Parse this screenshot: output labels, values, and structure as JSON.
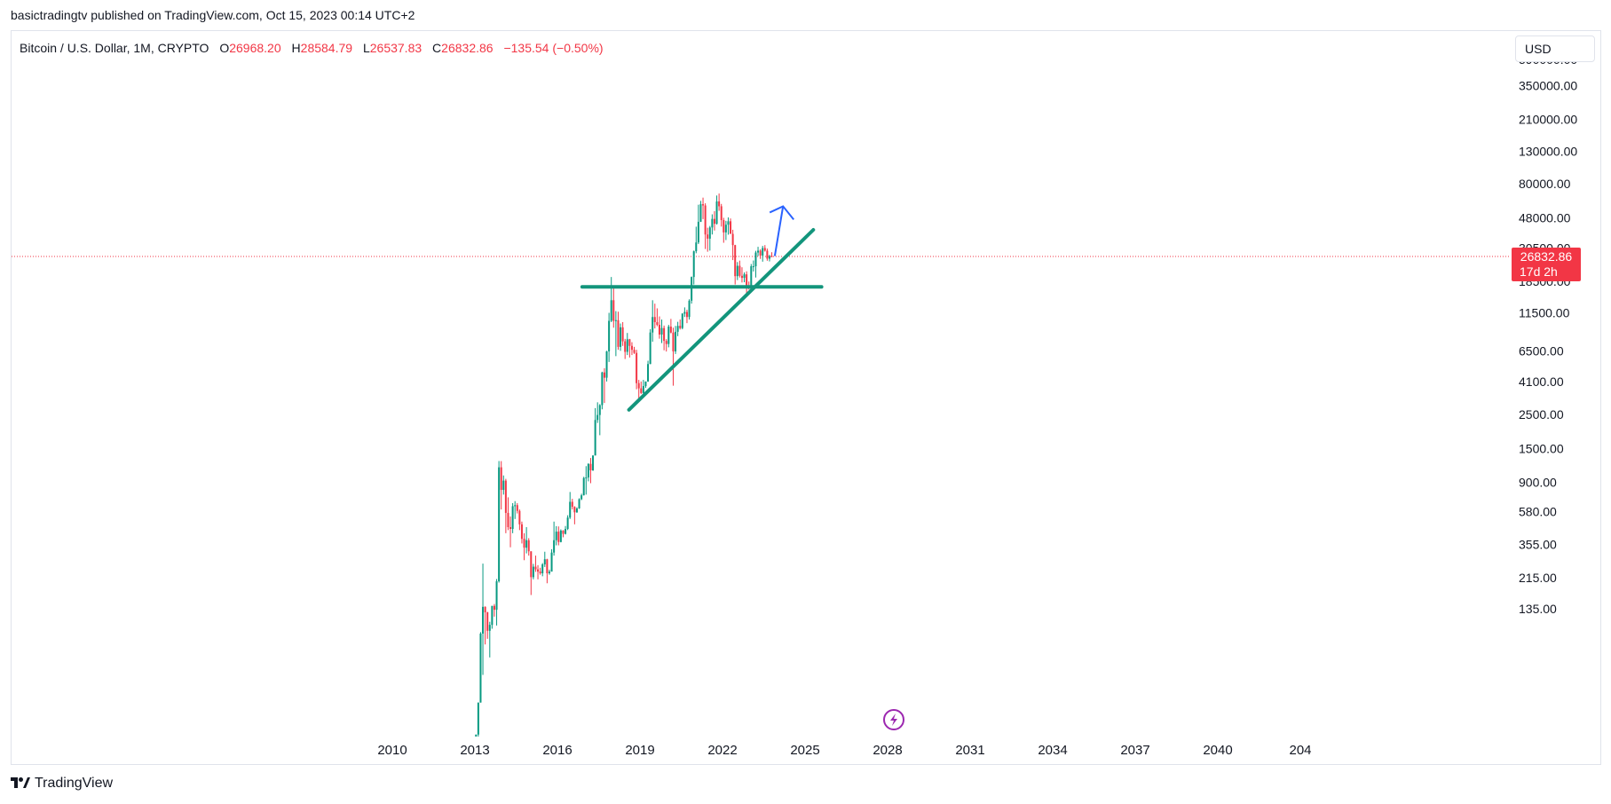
{
  "publish_line": "basictradingtv published on TradingView.com, Oct 15, 2023 00:14 UTC+2",
  "unit_button": "USD",
  "footer": {
    "brand": "TradingView"
  },
  "colors": {
    "up": "#089981",
    "down": "#f23645",
    "trendline": "#13957c",
    "arrow": "#2962ff",
    "badge": "#f23645",
    "grid_border": "#e0e3eb"
  },
  "chart_data": {
    "type": "candlestick",
    "symbol": "Bitcoin / U.S. Dollar, 1M, CRYPTO",
    "ohlc": {
      "open_label": "O",
      "open": "26968.20",
      "high_label": "H",
      "high": "28584.79",
      "low_label": "L",
      "low": "26537.83",
      "close_label": "C",
      "close": "26832.86",
      "change": "−135.54 (−0.50%)"
    },
    "y_scale": "log",
    "y_ticks": [
      {
        "label": "350000.00",
        "value": 350000
      },
      {
        "label": "210000.00",
        "value": 210000
      },
      {
        "label": "130000.00",
        "value": 130000
      },
      {
        "label": "80000.00",
        "value": 80000
      },
      {
        "label": "48000.00",
        "value": 48000
      },
      {
        "label": "18500.00",
        "value": 18500
      },
      {
        "label": "11500.00",
        "value": 11500
      },
      {
        "label": "6500.00",
        "value": 6500
      },
      {
        "label": "4100.00",
        "value": 4100
      },
      {
        "label": "2500.00",
        "value": 2500
      },
      {
        "label": "1500.00",
        "value": 1500
      },
      {
        "label": "900.00",
        "value": 900
      },
      {
        "label": "580.00",
        "value": 580
      },
      {
        "label": "355.00",
        "value": 355
      },
      {
        "label": "215.00",
        "value": 215
      },
      {
        "label": "135.00",
        "value": 135
      }
    ],
    "x_ticks": [
      "2010",
      "2013",
      "2016",
      "2019",
      "2022",
      "2025",
      "2028",
      "2031",
      "2034",
      "2037",
      "2040",
      "204"
    ],
    "last_price": {
      "value": 26832.86,
      "label": "26832.86",
      "countdown": "17d 2h"
    },
    "candles": [
      [
        "2013-01",
        13.3,
        20.4,
        12.9,
        20.4
      ],
      [
        "2013-02",
        20.4,
        33.0,
        19.5,
        33.0
      ],
      [
        "2013-03",
        33.0,
        95.0,
        33.0,
        93.0
      ],
      [
        "2013-04",
        93.0,
        266.0,
        50.0,
        139.0
      ],
      [
        "2013-05",
        139.0,
        140.0,
        79.0,
        128.0
      ],
      [
        "2013-06",
        128.0,
        129.0,
        86.0,
        97.0
      ],
      [
        "2013-07",
        97.0,
        111.0,
        65.0,
        106.0
      ],
      [
        "2013-08",
        106.0,
        141.0,
        100.0,
        141.0
      ],
      [
        "2013-09",
        141.0,
        145.0,
        120.0,
        133.0
      ],
      [
        "2013-10",
        133.0,
        211.0,
        105.0,
        204.0
      ],
      [
        "2013-11",
        204.0,
        1242.0,
        200.0,
        1130.0
      ],
      [
        "2013-12",
        1130.0,
        1240.0,
        600.0,
        805.0
      ],
      [
        "2014-01",
        805.0,
        1000.0,
        750.0,
        925.0
      ],
      [
        "2014-02",
        925.0,
        950.0,
        420.0,
        570.0
      ],
      [
        "2014-03",
        570.0,
        720.0,
        440.0,
        460.0
      ],
      [
        "2014-04",
        460.0,
        540.0,
        340.0,
        448.0
      ],
      [
        "2014-05",
        448.0,
        660.0,
        420.0,
        630.0
      ],
      [
        "2014-06",
        630.0,
        680.0,
        520.0,
        640.0
      ],
      [
        "2014-07",
        640.0,
        660.0,
        565.0,
        587.0
      ],
      [
        "2014-08",
        587.0,
        600.0,
        440.0,
        480.0
      ],
      [
        "2014-09",
        480.0,
        500.0,
        360.0,
        386.0
      ],
      [
        "2014-10",
        386.0,
        420.0,
        280.0,
        338.0
      ],
      [
        "2014-11",
        338.0,
        460.0,
        310.0,
        378.0
      ],
      [
        "2014-12",
        378.0,
        390.0,
        300.0,
        320.0
      ],
      [
        "2015-01",
        320.0,
        320.0,
        166.0,
        217.0
      ],
      [
        "2015-02",
        217.0,
        265.0,
        210.0,
        254.0
      ],
      [
        "2015-03",
        254.0,
        300.0,
        235.0,
        244.0
      ],
      [
        "2015-04",
        244.0,
        260.0,
        210.0,
        236.0
      ],
      [
        "2015-05",
        236.0,
        250.0,
        225.0,
        230.0
      ],
      [
        "2015-06",
        230.0,
        268.0,
        220.0,
        263.0
      ],
      [
        "2015-07",
        263.0,
        318.0,
        253.0,
        284.0
      ],
      [
        "2015-08",
        284.0,
        286.0,
        198.0,
        230.0
      ],
      [
        "2015-09",
        230.0,
        243.0,
        225.0,
        236.0
      ],
      [
        "2015-10",
        236.0,
        330.0,
        236.0,
        314.0
      ],
      [
        "2015-11",
        314.0,
        500.0,
        300.0,
        378.0
      ],
      [
        "2015-12",
        378.0,
        467.0,
        350.0,
        430.0
      ],
      [
        "2016-01",
        430.0,
        465.0,
        350.0,
        368.0
      ],
      [
        "2016-02",
        368.0,
        445.0,
        366.0,
        437.0
      ],
      [
        "2016-03",
        437.0,
        440.0,
        395.0,
        416.0
      ],
      [
        "2016-04",
        416.0,
        468.0,
        412.0,
        448.0
      ],
      [
        "2016-05",
        448.0,
        550.0,
        440.0,
        531.0
      ],
      [
        "2016-06",
        531.0,
        780.0,
        520.0,
        673.0
      ],
      [
        "2016-07",
        673.0,
        704.0,
        600.0,
        624.0
      ],
      [
        "2016-08",
        624.0,
        630.0,
        480.0,
        575.0
      ],
      [
        "2016-09",
        575.0,
        620.0,
        570.0,
        609.0
      ],
      [
        "2016-10",
        609.0,
        710.0,
        605.0,
        700.0
      ],
      [
        "2016-11",
        700.0,
        760.0,
        690.0,
        742.0
      ],
      [
        "2016-12",
        742.0,
        980.0,
        740.0,
        963.0
      ],
      [
        "2017-01",
        963.0,
        1150.0,
        750.0,
        970.0
      ],
      [
        "2017-02",
        970.0,
        1200.0,
        915.0,
        1190.0
      ],
      [
        "2017-03",
        1190.0,
        1300.0,
        890.0,
        1080.0
      ],
      [
        "2017-04",
        1080.0,
        1350.0,
        1070.0,
        1350.0
      ],
      [
        "2017-05",
        1350.0,
        2750.0,
        1350.0,
        2300.0
      ],
      [
        "2017-06",
        2300.0,
        3000.0,
        2200.0,
        2480.0
      ],
      [
        "2017-07",
        2480.0,
        2920.0,
        1830.0,
        2875.0
      ],
      [
        "2017-08",
        2875.0,
        4750.0,
        2700.0,
        4700.0
      ],
      [
        "2017-09",
        4700.0,
        5000.0,
        2970.0,
        4340.0
      ],
      [
        "2017-10",
        4340.0,
        6500.0,
        4100.0,
        6450.0
      ],
      [
        "2017-11",
        6450.0,
        11500.0,
        5500.0,
        10200.0
      ],
      [
        "2017-12",
        10200.0,
        19700.0,
        10000.0,
        13900.0
      ],
      [
        "2018-01",
        13900.0,
        17200.0,
        9200.0,
        10200.0
      ],
      [
        "2018-02",
        10200.0,
        11800.0,
        6000.0,
        10300.0
      ],
      [
        "2018-03",
        10300.0,
        11700.0,
        6600.0,
        6900.0
      ],
      [
        "2018-04",
        6900.0,
        9800.0,
        6500.0,
        9250.0
      ],
      [
        "2018-05",
        9250.0,
        10000.0,
        7000.0,
        7500.0
      ],
      [
        "2018-06",
        7500.0,
        7780.0,
        5750.0,
        6400.0
      ],
      [
        "2018-07",
        6400.0,
        8500.0,
        6100.0,
        7730.0
      ],
      [
        "2018-08",
        7730.0,
        7780.0,
        5880.0,
        7000.0
      ],
      [
        "2018-09",
        7000.0,
        7400.0,
        6100.0,
        6600.0
      ],
      [
        "2018-10",
        6600.0,
        6900.0,
        6200.0,
        6300.0
      ],
      [
        "2018-11",
        6300.0,
        6600.0,
        3650.0,
        4000.0
      ],
      [
        "2018-12",
        4000.0,
        4200.0,
        3150.0,
        3700.0
      ],
      [
        "2019-01",
        3700.0,
        4100.0,
        3400.0,
        3450.0
      ],
      [
        "2019-02",
        3450.0,
        4200.0,
        3380.0,
        3830.0
      ],
      [
        "2019-03",
        3830.0,
        4100.0,
        3730.0,
        4100.0
      ],
      [
        "2019-04",
        4100.0,
        5600.0,
        4080.0,
        5330.0
      ],
      [
        "2019-05",
        5330.0,
        9000.0,
        5320.0,
        8560.0
      ],
      [
        "2019-06",
        8560.0,
        13900.0,
        7450.0,
        10800.0
      ],
      [
        "2019-07",
        10800.0,
        13200.0,
        9100.0,
        10000.0
      ],
      [
        "2019-08",
        10000.0,
        12300.0,
        9400.0,
        9600.0
      ],
      [
        "2019-09",
        9600.0,
        10900.0,
        7800.0,
        8300.0
      ],
      [
        "2019-10",
        8300.0,
        10400.0,
        7300.0,
        9150.0
      ],
      [
        "2019-11",
        9150.0,
        9500.0,
        6550.0,
        7550.0
      ],
      [
        "2019-12",
        7550.0,
        7750.0,
        6430.0,
        7200.0
      ],
      [
        "2020-01",
        7200.0,
        9600.0,
        6850.0,
        9350.0
      ],
      [
        "2020-02",
        9350.0,
        10500.0,
        8450.0,
        8550.0
      ],
      [
        "2020-03",
        8550.0,
        9200.0,
        3850.0,
        6450.0
      ],
      [
        "2020-04",
        6450.0,
        9450.0,
        6200.0,
        8650.0
      ],
      [
        "2020-05",
        8650.0,
        10050.0,
        8100.0,
        9450.0
      ],
      [
        "2020-06",
        9450.0,
        10400.0,
        8950.0,
        9150.0
      ],
      [
        "2020-07",
        9150.0,
        11450.0,
        8980.0,
        11350.0
      ],
      [
        "2020-08",
        11350.0,
        12480.0,
        10800.0,
        11650.0
      ],
      [
        "2020-09",
        11650.0,
        12050.0,
        9850.0,
        10800.0
      ],
      [
        "2020-10",
        10800.0,
        14100.0,
        10400.0,
        13800.0
      ],
      [
        "2020-11",
        13800.0,
        19850.0,
        13200.0,
        19700.0
      ],
      [
        "2020-12",
        19700.0,
        29300.0,
        17600.0,
        29000.0
      ],
      [
        "2021-01",
        29000.0,
        41950.0,
        28150.0,
        33100.0
      ],
      [
        "2021-02",
        33100.0,
        58350.0,
        32300.0,
        45150.0
      ],
      [
        "2021-03",
        45150.0,
        61800.0,
        45000.0,
        58800.0
      ],
      [
        "2021-04",
        58800.0,
        64900.0,
        47000.0,
        57700.0
      ],
      [
        "2021-05",
        57700.0,
        59600.0,
        30000.0,
        37300.0
      ],
      [
        "2021-06",
        37300.0,
        41300.0,
        28800.0,
        35050.0
      ],
      [
        "2021-07",
        35050.0,
        42400.0,
        29300.0,
        41450.0
      ],
      [
        "2021-08",
        41450.0,
        50500.0,
        37300.0,
        47150.0
      ],
      [
        "2021-09",
        47150.0,
        52950.0,
        39600.0,
        43800.0
      ],
      [
        "2021-10",
        43800.0,
        67000.0,
        43300.0,
        61300.0
      ],
      [
        "2021-11",
        61300.0,
        69000.0,
        53250.0,
        57000.0
      ],
      [
        "2021-12",
        57000.0,
        59050.0,
        42000.0,
        46300.0
      ],
      [
        "2022-01",
        46300.0,
        47950.0,
        32950.0,
        38500.0
      ],
      [
        "2022-02",
        38500.0,
        45800.0,
        34300.0,
        43200.0
      ],
      [
        "2022-03",
        43200.0,
        48200.0,
        37200.0,
        45500.0
      ],
      [
        "2022-04",
        45500.0,
        47450.0,
        37700.0,
        37650.0
      ],
      [
        "2022-05",
        37650.0,
        40050.0,
        25400.0,
        31800.0
      ],
      [
        "2022-06",
        31800.0,
        31950.0,
        17600.0,
        19950.0
      ],
      [
        "2022-07",
        19950.0,
        24650.0,
        18800.0,
        23300.0
      ],
      [
        "2022-08",
        23300.0,
        25200.0,
        19550.0,
        20050.0
      ],
      [
        "2022-09",
        20050.0,
        22800.0,
        18150.0,
        19450.0
      ],
      [
        "2022-10",
        19450.0,
        21100.0,
        18200.0,
        20500.0
      ],
      [
        "2022-11",
        20500.0,
        21450.0,
        15500.0,
        17150.0
      ],
      [
        "2022-12",
        17150.0,
        18400.0,
        16300.0,
        16550.0
      ],
      [
        "2023-01",
        16550.0,
        23950.0,
        16500.0,
        23150.0
      ],
      [
        "2023-02",
        23150.0,
        25250.0,
        21400.0,
        23150.0
      ],
      [
        "2023-03",
        23150.0,
        29200.0,
        19550.0,
        28450.0
      ],
      [
        "2023-04",
        28450.0,
        31000.0,
        26950.0,
        29250.0
      ],
      [
        "2023-05",
        29250.0,
        29850.0,
        25850.0,
        27200.0
      ],
      [
        "2023-06",
        27200.0,
        31450.0,
        24800.0,
        30450.0
      ],
      [
        "2023-07",
        30450.0,
        31800.0,
        28850.0,
        29250.0
      ],
      [
        "2023-08",
        29250.0,
        30200.0,
        25150.0,
        25950.0
      ],
      [
        "2023-09",
        25950.0,
        27500.0,
        24900.0,
        26950.0
      ],
      [
        "2023-10",
        26968.2,
        28584.79,
        26537.83,
        26832.86
      ]
    ],
    "drawings": [
      {
        "type": "horizontal-line",
        "price": 17000,
        "from": "2016.9",
        "to": "2025.6"
      },
      {
        "type": "trend-line",
        "from": [
          "2018.6",
          2680
        ],
        "to": [
          "2025.3",
          40000
        ]
      },
      {
        "type": "arrow",
        "from": [
          "2023.9",
          27000
        ],
        "to": [
          "2024.2",
          57000
        ]
      }
    ]
  }
}
